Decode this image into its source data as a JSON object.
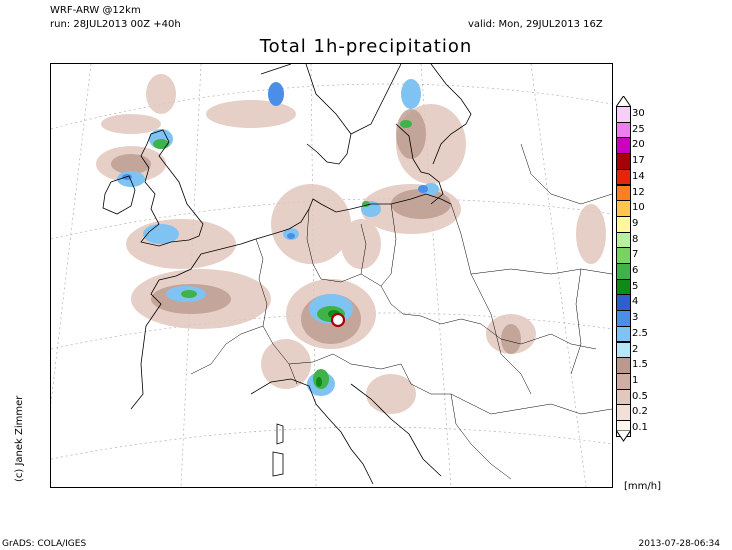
{
  "header": {
    "model": "WRF-ARW @12km",
    "run": "run: 28JUL2013 00Z +40h",
    "valid": "valid: Mon, 29JUL2013 16Z",
    "title": "Total 1h-precipitation"
  },
  "credit": "(c) Janek Zimmer",
  "legend": {
    "unit": "[mm/h]",
    "levels": [
      {
        "label": "0.1",
        "color": "#fff6ee"
      },
      {
        "label": "0.2",
        "color": "#f3dfd6"
      },
      {
        "label": "0.5",
        "color": "#e2c7bd"
      },
      {
        "label": "1",
        "color": "#ceafa4"
      },
      {
        "label": "1.5",
        "color": "#bb9a8e"
      },
      {
        "label": "2",
        "color": "#b7e7f6"
      },
      {
        "label": "2.5",
        "color": "#7fc3f3"
      },
      {
        "label": "3",
        "color": "#4b8ee8"
      },
      {
        "label": "4",
        "color": "#2d5fcf"
      },
      {
        "label": "5",
        "color": "#0d8a1a"
      },
      {
        "label": "6",
        "color": "#3fb24a"
      },
      {
        "label": "7",
        "color": "#77d45f"
      },
      {
        "label": "8",
        "color": "#b8f0a0"
      },
      {
        "label": "9",
        "color": "#fff7a0"
      },
      {
        "label": "10",
        "color": "#ffc74a"
      },
      {
        "label": "12",
        "color": "#ff7e1e"
      },
      {
        "label": "14",
        "color": "#e6240e"
      },
      {
        "label": "17",
        "color": "#a60008"
      },
      {
        "label": "20",
        "color": "#c900c0"
      },
      {
        "label": "25",
        "color": "#ee7eee"
      },
      {
        "label": "30",
        "color": "#f6cff6"
      }
    ]
  },
  "footer": {
    "left": "GrADS: COLA/IGES",
    "right": "2013-07-28-06:34"
  }
}
